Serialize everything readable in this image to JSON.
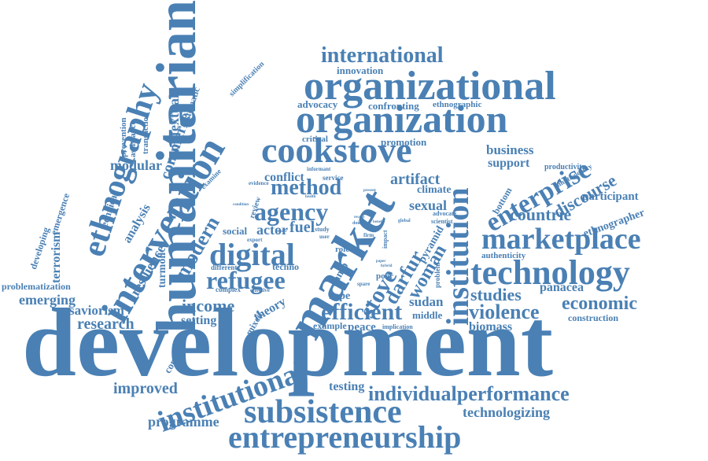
{
  "cloud": {
    "color": "#4a80b4",
    "words": {
      "development": "development",
      "humanitarian": "humanitarian",
      "market": "market",
      "intervention": "intervention",
      "ethnography": "ethnography",
      "organizational": "organizational",
      "organization": "organization",
      "cookstove": "cookstove",
      "international": "international",
      "marketplace": "marketplace",
      "technology": "technology",
      "enterprise": "enterprise",
      "institution": "institution",
      "entrepreneurship": "entrepreneurship",
      "subsistence": "subsistence",
      "institutional": "institutional",
      "individualperformance": "individualperformance",
      "digital": "digital",
      "refugee": "refugee",
      "agency": "agency",
      "method": "method",
      "efficient": "efficient",
      "violence": "violence",
      "economic": "economic",
      "studies": "studies",
      "countrie": "countrie",
      "discourse": "discourse",
      "stove": "stove",
      "darfur": "darfur",
      "woman": "woman",
      "modern": "modern",
      "income": "income",
      "emerging": "emerging",
      "research": "research",
      "saviorism": "saviorism",
      "improved": "improved",
      "programme": "programme",
      "technologizing": "technologizing",
      "testing": "testing",
      "biomass": "biomass",
      "panacea": "panacea",
      "construction": "construction",
      "business": "business",
      "support": "support",
      "participant": "participant",
      "ethnographer": "ethnographer",
      "commerce": "commerce",
      "contextual": "contextual",
      "modular": "modular",
      "terrorism": "terrorism",
      "problematization": "problematization",
      "developing": "developing",
      "emergence": "emergence",
      "resilience": "resilience",
      "analysis": "analysis",
      "technical": "technical",
      "turmoil": "turmoil",
      "advocacy": "advocacy",
      "confronting": "confronting",
      "ethnographic": "ethnographic",
      "innovation": "innovation",
      "promotion": "promotion",
      "critical": "critical",
      "conflict": "conflict",
      "artifact": "artifact",
      "sexual": "sexual",
      "climate": "climate",
      "fuel": "fuel",
      "actor": "actor",
      "social": "social",
      "techno": "techno",
      "theory": "theory",
      "setting": "setting",
      "context": "context",
      "mixed": "mixed",
      "peace": "peace",
      "rape": "rape",
      "sudan": "sudan",
      "middle": "middle",
      "example": "example",
      "pyramid": "pyramid",
      "camp": "camp",
      "bottom": "bottom",
      "authenticity": "authenticity",
      "productivity": "productivity",
      "multivocality": "multivocality",
      "systematic": "systematic",
      "simplification": "simplification",
      "prevention": "prevention",
      "assistance": "assistance",
      "transaction": "transaction",
      "examine": "examine",
      "complex": "complex",
      "different": "different",
      "review": "review",
      "evidence": "evidence",
      "service": "service",
      "informant": "informant",
      "implication": "implication",
      "scientist": "scientist",
      "advocate": "advocate",
      "problem": "problem",
      "poor": "poor",
      "impact": "impact",
      "role": "role",
      "export": "export",
      "user": "user",
      "study": "study",
      "effective": "effective",
      "global": "global",
      "doing": "doing",
      "firm": "firm",
      "spare": "spare",
      "benefit": "benefit",
      "paper": "paper",
      "present": "present",
      "health": "health",
      "gender": "gender",
      "condition": "condition",
      "recent": "recent",
      "hybrid": "hybrid"
    }
  }
}
